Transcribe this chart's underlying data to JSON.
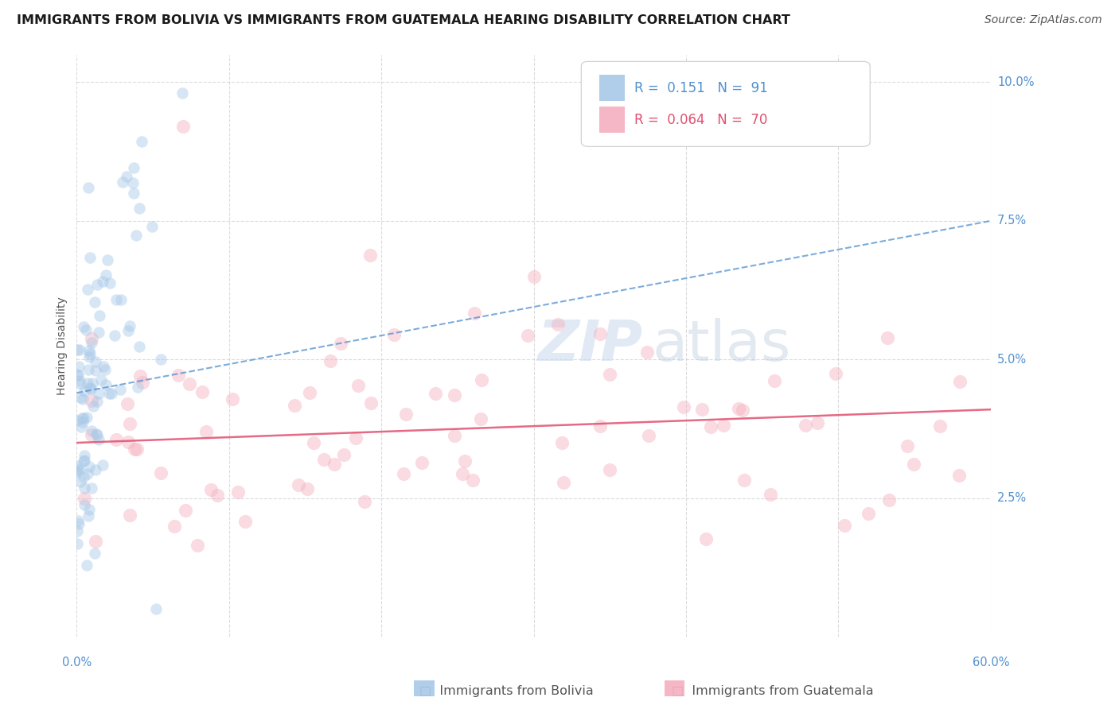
{
  "title": "IMMIGRANTS FROM BOLIVIA VS IMMIGRANTS FROM GUATEMALA HEARING DISABILITY CORRELATION CHART",
  "source": "Source: ZipAtlas.com",
  "ylabel": "Hearing Disability",
  "y_ticks": [
    0.0,
    0.025,
    0.05,
    0.075,
    0.1
  ],
  "y_tick_labels": [
    "",
    "2.5%",
    "5.0%",
    "7.5%",
    "10.0%"
  ],
  "x_min": 0.0,
  "x_max": 0.6,
  "y_min": 0.0,
  "y_max": 0.105,
  "bolivia_color": "#a8c8e8",
  "guatemala_color": "#f4b0c0",
  "bolivia_line_color": "#5090d0",
  "guatemala_line_color": "#e05070",
  "bolivia_R": 0.151,
  "bolivia_N": 91,
  "guatemala_R": 0.064,
  "guatemala_N": 70,
  "watermark_zip": "ZIP",
  "watermark_atlas": "atlas",
  "background_color": "#ffffff",
  "grid_color": "#cccccc",
  "title_fontsize": 11.5,
  "axis_label_fontsize": 10,
  "tick_fontsize": 10.5,
  "legend_fontsize": 12,
  "source_fontsize": 10,
  "watermark_fontsize": 52,
  "scatter_size": 110,
  "scatter_alpha": 0.45,
  "bolivia_trend_y0": 0.044,
  "bolivia_trend_y1": 0.075,
  "guatemala_trend_y0": 0.035,
  "guatemala_trend_y1": 0.041,
  "bolivia_seed": 12,
  "guatemala_seed": 77
}
